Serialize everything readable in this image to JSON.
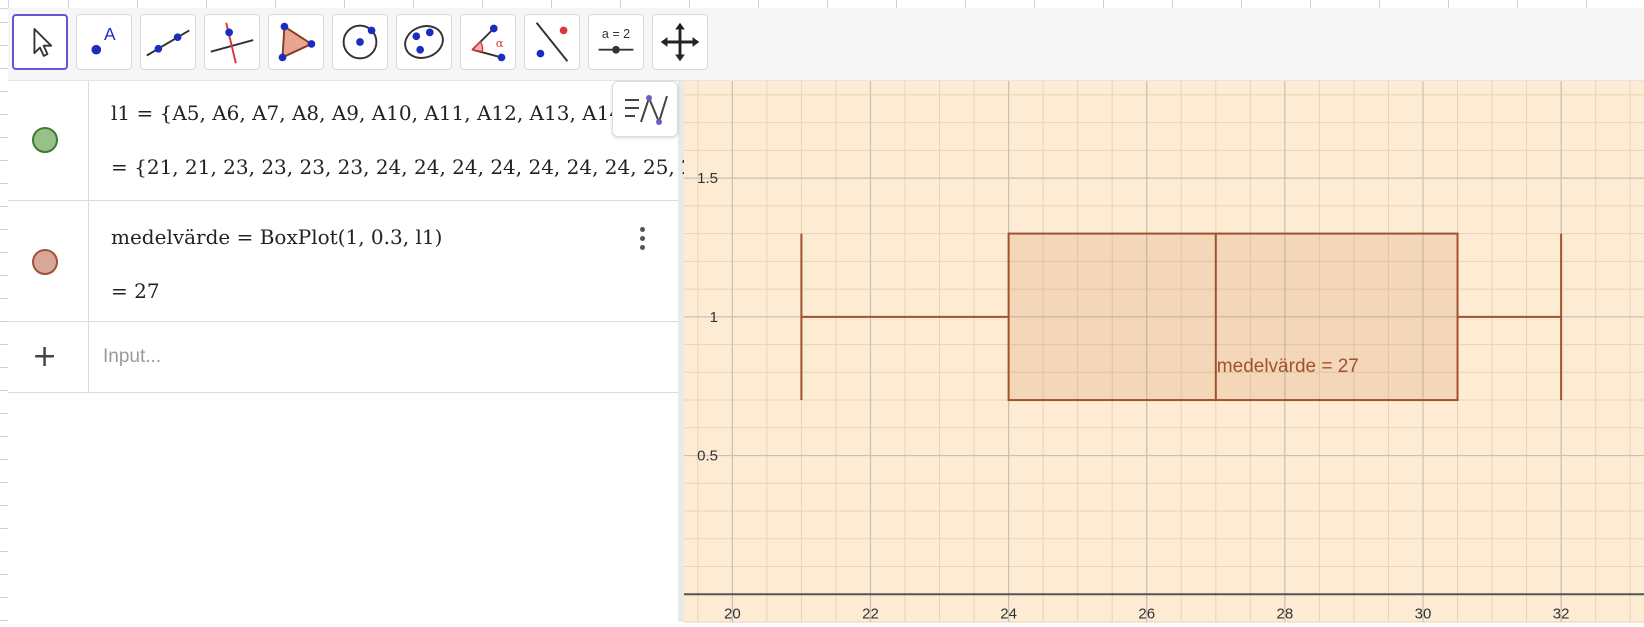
{
  "toolbar": {
    "tools": [
      {
        "name": "move-tool-icon",
        "selected": true
      },
      {
        "name": "point-tool-icon",
        "label": "A"
      },
      {
        "name": "line-tool-icon"
      },
      {
        "name": "perpendicular-line-tool-icon"
      },
      {
        "name": "polygon-tool-icon"
      },
      {
        "name": "circle-center-point-tool-icon"
      },
      {
        "name": "conic-five-points-tool-icon"
      },
      {
        "name": "angle-tool-icon",
        "label": "α"
      },
      {
        "name": "reflect-tool-icon"
      },
      {
        "name": "slider-tool-icon",
        "label": "a = 2"
      },
      {
        "name": "move-graphics-view-tool-icon"
      }
    ]
  },
  "algebra": {
    "items": [
      {
        "dot_color": "#96c28a",
        "dot_border": "#3f7a34",
        "definition": "l1 = {A5, A6, A7, A8, A9, A10, A11, A12, A13, A14",
        "value": "=  {21, 21, 23, 23, 23, 23, 24, 24, 24, 24, 24, 24, 24, 25, 2"
      },
      {
        "dot_color": "#d9a796",
        "dot_border": "#a0513a",
        "definition": "medelvärde  =  BoxPlot(1, 0.3, l1)",
        "value": "=  27"
      }
    ],
    "input_placeholder": "Input..."
  },
  "graphics": {
    "background": "#fdecd3",
    "accent": "#a0522d",
    "x_ticks": [
      "20",
      "22",
      "24",
      "26",
      "28",
      "30",
      "32"
    ],
    "y_ticks": [
      "0.5",
      "1",
      "1.5"
    ],
    "box_label": "medelvärde = 27"
  },
  "chart_data": {
    "type": "boxplot",
    "y_position": 1,
    "half_height": 0.3,
    "min": 21,
    "q1": 24,
    "median": 27,
    "q3": 30.5,
    "max": 32,
    "label": "medelvärde = 27",
    "xlim": [
      19.3,
      33.2
    ],
    "ylim": [
      -0.1,
      1.85
    ],
    "grid": true
  }
}
